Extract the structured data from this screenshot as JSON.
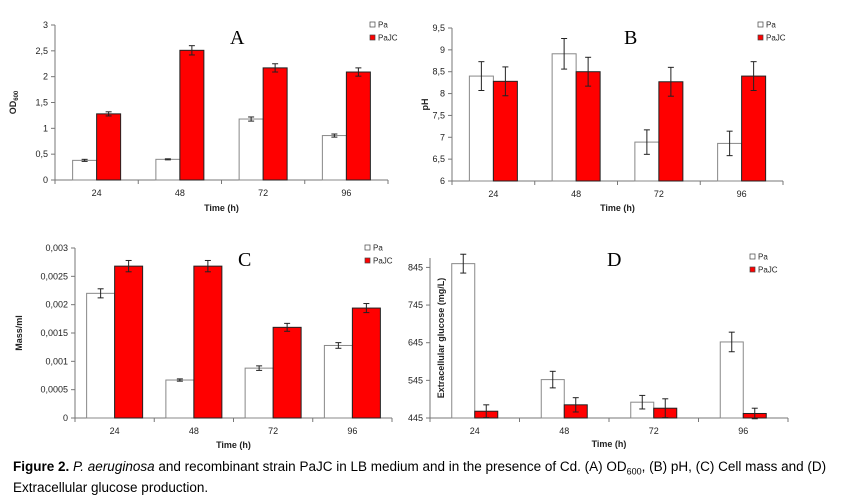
{
  "colors": {
    "Pa": "#ffffff",
    "PaJC": "#ff0000",
    "axis": "#777777"
  },
  "chart_data": [
    {
      "type": "bar",
      "panel": "A",
      "categories": [
        "24",
        "48",
        "72",
        "96"
      ],
      "xlabel": "Time (h)",
      "ylabel": "OD",
      "ylabel_sub": "600",
      "ylim": [
        0,
        3
      ],
      "yticks": [
        "0",
        "0,5",
        "1",
        "1,5",
        "2",
        "2,5",
        "3"
      ],
      "ytick_values": [
        0,
        0.5,
        1,
        1.5,
        2,
        2.5,
        3
      ],
      "legend_position": "top-right",
      "grid": false,
      "series": [
        {
          "name": "Pa",
          "values": [
            0.38,
            0.4,
            1.18,
            0.86
          ],
          "errors": [
            0.02,
            0.01,
            0.04,
            0.03
          ]
        },
        {
          "name": "PaJC",
          "values": [
            1.28,
            2.51,
            2.17,
            2.09
          ],
          "errors": [
            0.04,
            0.09,
            0.08,
            0.08
          ]
        }
      ]
    },
    {
      "type": "bar",
      "panel": "B",
      "categories": [
        "24",
        "48",
        "72",
        "96"
      ],
      "xlabel": "Time (h)",
      "ylabel": "pH",
      "ylim": [
        6,
        9.5
      ],
      "yticks": [
        "6",
        "6,5",
        "7",
        "7,5",
        "8",
        "8,5",
        "9",
        "9,5"
      ],
      "ytick_values": [
        6,
        6.5,
        7,
        7.5,
        8,
        8.5,
        9,
        9.5
      ],
      "legend_position": "top-right",
      "grid": false,
      "series": [
        {
          "name": "Pa",
          "values": [
            8.4,
            8.91,
            6.89,
            6.86
          ],
          "errors": [
            0.33,
            0.35,
            0.28,
            0.28
          ]
        },
        {
          "name": "PaJC",
          "values": [
            8.28,
            8.5,
            8.27,
            8.4
          ],
          "errors": [
            0.33,
            0.33,
            0.33,
            0.33
          ]
        }
      ]
    },
    {
      "type": "bar",
      "panel": "C",
      "categories": [
        "24",
        "48",
        "72",
        "96"
      ],
      "xlabel": "Time (h)",
      "ylabel": "Mass/ml",
      "ylim": [
        0,
        0.003
      ],
      "yticks": [
        "0",
        "0,0005",
        "0,001",
        "0,0015",
        "0,002",
        "0,0025",
        "0,003"
      ],
      "ytick_values": [
        0,
        0.0005,
        0.001,
        0.0015,
        0.002,
        0.0025,
        0.003
      ],
      "legend_position": "top-right",
      "grid": false,
      "series": [
        {
          "name": "Pa",
          "values": [
            0.0022,
            0.00067,
            0.00088,
            0.00128
          ],
          "errors": [
            8e-05,
            2e-05,
            4e-05,
            5e-05
          ]
        },
        {
          "name": "PaJC",
          "values": [
            0.00268,
            0.00268,
            0.0016,
            0.00194
          ],
          "errors": [
            0.0001,
            0.0001,
            7e-05,
            8e-05
          ]
        }
      ]
    },
    {
      "type": "bar",
      "panel": "D",
      "categories": [
        "24",
        "48",
        "72",
        "96"
      ],
      "xlabel": "Time (h)",
      "ylabel": "Extracellular glucose (mg/L)",
      "ylim": [
        445,
        870
      ],
      "yticks": [
        "445",
        "545",
        "645",
        "745",
        "845"
      ],
      "ytick_values": [
        445,
        545,
        645,
        745,
        845
      ],
      "legend_position": "top-right",
      "grid": false,
      "series": [
        {
          "name": "Pa",
          "values": [
            855,
            547,
            487,
            647
          ],
          "errors": [
            25,
            22,
            18,
            26
          ]
        },
        {
          "name": "PaJC",
          "values": [
            463,
            480,
            471,
            457
          ],
          "errors": [
            17,
            19,
            25,
            14
          ]
        }
      ]
    }
  ],
  "caption": {
    "label": "Figure 2.",
    "species": "P. aeruginosa",
    "text1": " and recombinant strain PaJC in LB medium and in the presence of Cd. (A) OD",
    "sub": "600",
    "text2": ", (B) pH, (C) Cell mass and (D) Extracellular glucose production."
  }
}
